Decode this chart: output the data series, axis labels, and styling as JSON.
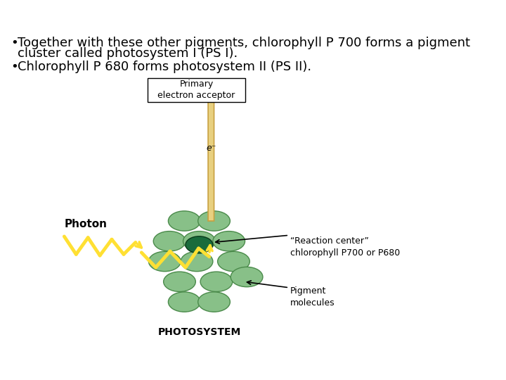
{
  "bg_color": "#ffffff",
  "bullet1_line1": "Together with these other pigments, chlorophyll P 700 forms a pigment",
  "bullet1_line2": "cluster called photosystem I (PS I).",
  "bullet2": "Chlorophyll P 680 forms photosystem II (PS II).",
  "box_label": "Primary\nelectron acceptor",
  "photon_label": "Photon",
  "reaction_center_label": "“Reaction center”\nchlorophyll P700 or P680",
  "pigment_label": "Pigment\nmolecules",
  "photosystem_label": "PHOTOSYSTEM",
  "electron_symbol": "e⁻",
  "light_green": "#88C088",
  "dark_green": "#1a6b3c",
  "yellow": "#FFE033",
  "arrow_tan": "#E8D080",
  "arrow_tan_edge": "#C8A040",
  "text_color": "#000000",
  "bullet_fontsize": 13,
  "label_fontsize": 10,
  "small_fontsize": 9
}
